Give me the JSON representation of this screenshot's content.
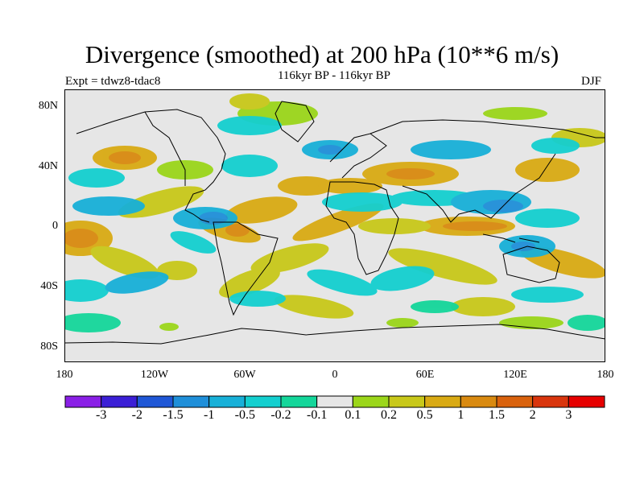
{
  "title": "Divergence (smoothed) at 200 hPa (10**6 m/s)",
  "subtitle": "116kyr BP - 116kyr BP",
  "experiment": "Expt = tdwz8-tdac8",
  "season": "DJF",
  "lat_labels": [
    "80N",
    "40N",
    "0",
    "40S",
    "80S"
  ],
  "lon_labels": [
    "180",
    "120W",
    "60W",
    "0",
    "60E",
    "120E",
    "180"
  ],
  "colorbar": {
    "labels": [
      "-3",
      "-2",
      "-1.5",
      "-1",
      "-0.5",
      "-0.2",
      "-0.1",
      "0.1",
      "0.2",
      "0.5",
      "1",
      "1.5",
      "2",
      "3"
    ],
    "colors": [
      "#8a1fe6",
      "#3b1fd6",
      "#1f57d6",
      "#1f8fd9",
      "#18b0d8",
      "#14cfcf",
      "#14d69a",
      "#e6e6e6",
      "#9bd61a",
      "#c8c81a",
      "#d9aa14",
      "#d98a10",
      "#d9620d",
      "#d9350d",
      "#e60000"
    ]
  },
  "map": {
    "background": "#e6e6e6",
    "coast_color": "#000000"
  }
}
